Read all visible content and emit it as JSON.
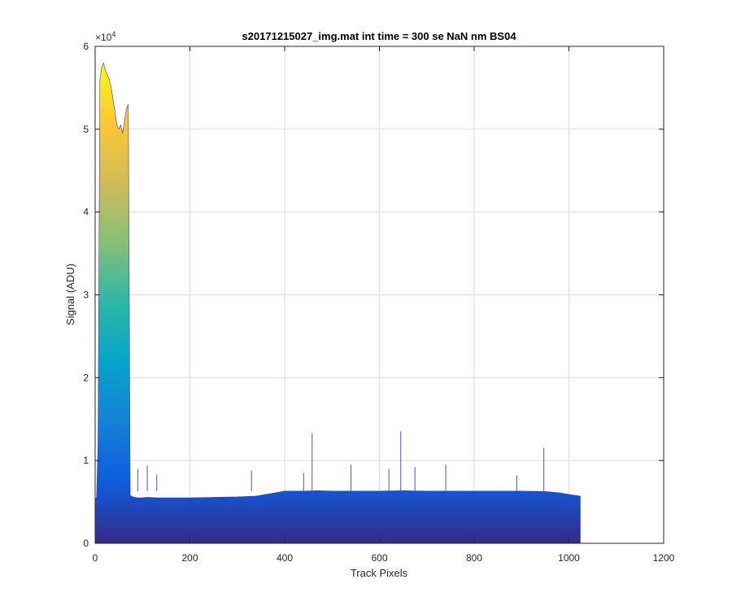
{
  "chart_data": {
    "type": "area",
    "title": "s20171215027_img.mat int time = 300 se  NaN nm BS04",
    "xlabel": "Track Pixels",
    "ylabel": "Signal (ADU)",
    "xlim": [
      0,
      1200
    ],
    "ylim": [
      0,
      60000
    ],
    "x_ticks": [
      0,
      200,
      400,
      600,
      800,
      1000,
      1200
    ],
    "y_ticks": [
      0,
      10000,
      20000,
      30000,
      40000,
      50000,
      60000
    ],
    "y_tick_labels": [
      "0",
      "1",
      "2",
      "3",
      "4",
      "5",
      "6"
    ],
    "y_exponent_label": "×10",
    "y_exponent_power": "4",
    "grid": true,
    "colormap": [
      "#352a87",
      "#0f5cdd",
      "#1481d6",
      "#06a4ca",
      "#2eb7a4",
      "#87bf77",
      "#d1bb59",
      "#fec832",
      "#f9fb0e"
    ],
    "series": [
      {
        "x": [
          0,
          3,
          6,
          10,
          14,
          18,
          22,
          26,
          30,
          34,
          38,
          42,
          46,
          50,
          54,
          58,
          62,
          66,
          70,
          72,
          74,
          76,
          80,
          90,
          100,
          110,
          130,
          150,
          200,
          250,
          300,
          340,
          360,
          380,
          400,
          420,
          440,
          470,
          500,
          550,
          600,
          650,
          700,
          750,
          800,
          850,
          900,
          950,
          980,
          1000,
          1024
        ],
        "y": [
          5200,
          5600,
          12000,
          56000,
          57500,
          58000,
          57000,
          56500,
          56000,
          55000,
          53500,
          52000,
          50500,
          50000,
          50500,
          49500,
          51000,
          52500,
          53000,
          30000,
          5800,
          5700,
          5600,
          5500,
          5500,
          5550,
          5500,
          5500,
          5500,
          5550,
          5600,
          5700,
          5900,
          6100,
          6300,
          6300,
          6300,
          6350,
          6300,
          6300,
          6300,
          6350,
          6300,
          6300,
          6300,
          6300,
          6300,
          6250,
          6100,
          5900,
          5700
        ]
      }
    ],
    "spikes": [
      {
        "x": 90,
        "y": 9000
      },
      {
        "x": 110,
        "y": 9400
      },
      {
        "x": 130,
        "y": 8300
      },
      {
        "x": 330,
        "y": 8800
      },
      {
        "x": 440,
        "y": 8500
      },
      {
        "x": 458,
        "y": 13300
      },
      {
        "x": 540,
        "y": 9500
      },
      {
        "x": 620,
        "y": 9000
      },
      {
        "x": 645,
        "y": 13500
      },
      {
        "x": 675,
        "y": 9200
      },
      {
        "x": 740,
        "y": 9500
      },
      {
        "x": 890,
        "y": 8200
      },
      {
        "x": 947,
        "y": 11500
      }
    ]
  }
}
